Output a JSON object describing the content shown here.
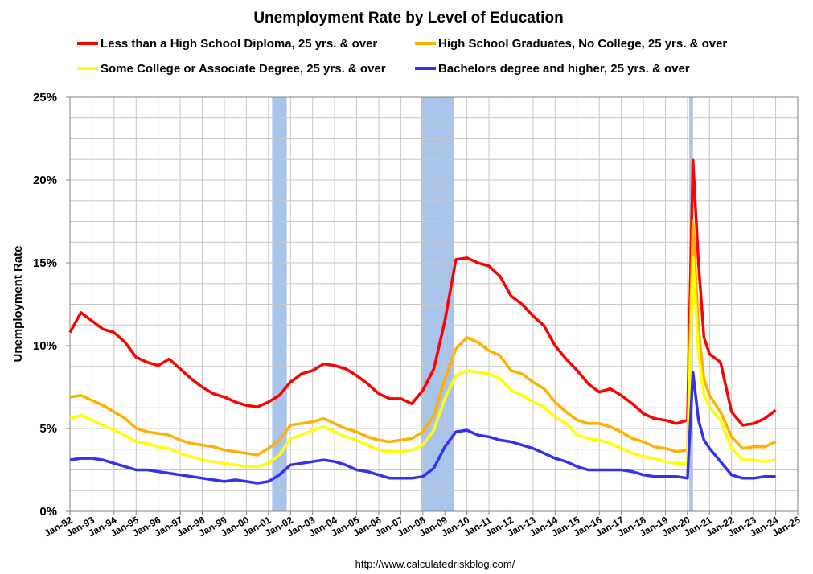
{
  "chart_data": {
    "type": "line",
    "title": "Unemployment Rate by Level of Education",
    "ylabel": "Unemployment Rate",
    "xlabel": "",
    "ylim": [
      0,
      25
    ],
    "xlim": [
      "Jan-92",
      "Jan-25"
    ],
    "y_ticks": [
      "0%",
      "5%",
      "10%",
      "15%",
      "20%",
      "25%"
    ],
    "x_ticks": [
      "Jan-92",
      "Jan-93",
      "Jan-94",
      "Jan-95",
      "Jan-96",
      "Jan-97",
      "Jan-98",
      "Jan-99",
      "Jan-00",
      "Jan-01",
      "Jan-02",
      "Jan-03",
      "Jan-04",
      "Jan-05",
      "Jan-06",
      "Jan-07",
      "Jan-08",
      "Jan-09",
      "Jan-10",
      "Jan-11",
      "Jan-12",
      "Jan-13",
      "Jan-14",
      "Jan-15",
      "Jan-16",
      "Jan-17",
      "Jan-18",
      "Jan-19",
      "Jan-20",
      "Jan-21",
      "Jan-22",
      "Jan-23",
      "Jan-24",
      "Jan-25"
    ],
    "grid": true,
    "legend_position": "top",
    "recessions": [
      {
        "start": "2001-03",
        "end": "2001-11"
      },
      {
        "start": "2007-12",
        "end": "2009-06"
      },
      {
        "start": "2020-02",
        "end": "2020-04"
      }
    ],
    "recession_color": "#a9c4eb",
    "source_text": "http://www.calculatedriskblog.com/",
    "series": [
      {
        "name": "Less than a High School Diploma, 25 yrs. & over",
        "color": "#ff0000",
        "points": [
          [
            "1992-01",
            10.8
          ],
          [
            "1992-07",
            12.0
          ],
          [
            "1993-01",
            11.5
          ],
          [
            "1993-07",
            11.0
          ],
          [
            "1994-01",
            10.8
          ],
          [
            "1994-07",
            10.2
          ],
          [
            "1995-01",
            9.3
          ],
          [
            "1995-07",
            9.0
          ],
          [
            "1996-01",
            8.8
          ],
          [
            "1996-07",
            9.2
          ],
          [
            "1997-01",
            8.6
          ],
          [
            "1997-07",
            8.0
          ],
          [
            "1998-01",
            7.5
          ],
          [
            "1998-07",
            7.1
          ],
          [
            "1999-01",
            6.9
          ],
          [
            "1999-07",
            6.6
          ],
          [
            "2000-01",
            6.4
          ],
          [
            "2000-07",
            6.3
          ],
          [
            "2001-01",
            6.6
          ],
          [
            "2001-07",
            7.0
          ],
          [
            "2002-01",
            7.8
          ],
          [
            "2002-07",
            8.3
          ],
          [
            "2003-01",
            8.5
          ],
          [
            "2003-07",
            8.9
          ],
          [
            "2004-01",
            8.8
          ],
          [
            "2004-07",
            8.6
          ],
          [
            "2005-01",
            8.2
          ],
          [
            "2005-07",
            7.7
          ],
          [
            "2006-01",
            7.1
          ],
          [
            "2006-07",
            6.8
          ],
          [
            "2007-01",
            6.8
          ],
          [
            "2007-07",
            6.5
          ],
          [
            "2008-01",
            7.3
          ],
          [
            "2008-07",
            8.6
          ],
          [
            "2009-01",
            11.5
          ],
          [
            "2009-07",
            15.2
          ],
          [
            "2010-01",
            15.3
          ],
          [
            "2010-07",
            15.0
          ],
          [
            "2011-01",
            14.8
          ],
          [
            "2011-07",
            14.2
          ],
          [
            "2012-01",
            13.0
          ],
          [
            "2012-07",
            12.5
          ],
          [
            "2013-01",
            11.8
          ],
          [
            "2013-07",
            11.2
          ],
          [
            "2014-01",
            10.0
          ],
          [
            "2014-07",
            9.2
          ],
          [
            "2015-01",
            8.5
          ],
          [
            "2015-07",
            7.7
          ],
          [
            "2016-01",
            7.2
          ],
          [
            "2016-07",
            7.4
          ],
          [
            "2017-01",
            7.0
          ],
          [
            "2017-07",
            6.5
          ],
          [
            "2018-01",
            5.9
          ],
          [
            "2018-07",
            5.6
          ],
          [
            "2019-01",
            5.5
          ],
          [
            "2019-07",
            5.3
          ],
          [
            "2020-01",
            5.5
          ],
          [
            "2020-04",
            21.2
          ],
          [
            "2020-07",
            15.0
          ],
          [
            "2020-10",
            10.5
          ],
          [
            "2021-01",
            9.5
          ],
          [
            "2021-07",
            9.0
          ],
          [
            "2022-01",
            6.0
          ],
          [
            "2022-07",
            5.2
          ],
          [
            "2023-01",
            5.3
          ],
          [
            "2023-07",
            5.6
          ],
          [
            "2024-01",
            6.1
          ]
        ]
      },
      {
        "name": "High School Graduates, No College, 25 yrs. & over",
        "color": "#ffb000",
        "points": [
          [
            "1992-01",
            6.9
          ],
          [
            "1992-07",
            7.0
          ],
          [
            "1993-01",
            6.7
          ],
          [
            "1993-07",
            6.4
          ],
          [
            "1994-01",
            6.0
          ],
          [
            "1994-07",
            5.6
          ],
          [
            "1995-01",
            5.0
          ],
          [
            "1995-07",
            4.8
          ],
          [
            "1996-01",
            4.7
          ],
          [
            "1996-07",
            4.6
          ],
          [
            "1997-01",
            4.3
          ],
          [
            "1997-07",
            4.1
          ],
          [
            "1998-01",
            4.0
          ],
          [
            "1998-07",
            3.9
          ],
          [
            "1999-01",
            3.7
          ],
          [
            "1999-07",
            3.6
          ],
          [
            "2000-01",
            3.5
          ],
          [
            "2000-07",
            3.4
          ],
          [
            "2001-01",
            3.8
          ],
          [
            "2001-07",
            4.3
          ],
          [
            "2002-01",
            5.2
          ],
          [
            "2002-07",
            5.3
          ],
          [
            "2003-01",
            5.4
          ],
          [
            "2003-07",
            5.6
          ],
          [
            "2004-01",
            5.3
          ],
          [
            "2004-07",
            5.0
          ],
          [
            "2005-01",
            4.8
          ],
          [
            "2005-07",
            4.5
          ],
          [
            "2006-01",
            4.3
          ],
          [
            "2006-07",
            4.2
          ],
          [
            "2007-01",
            4.3
          ],
          [
            "2007-07",
            4.4
          ],
          [
            "2008-01",
            4.8
          ],
          [
            "2008-07",
            5.8
          ],
          [
            "2009-01",
            8.0
          ],
          [
            "2009-07",
            9.8
          ],
          [
            "2010-01",
            10.5
          ],
          [
            "2010-07",
            10.2
          ],
          [
            "2011-01",
            9.7
          ],
          [
            "2011-07",
            9.4
          ],
          [
            "2012-01",
            8.5
          ],
          [
            "2012-07",
            8.3
          ],
          [
            "2013-01",
            7.8
          ],
          [
            "2013-07",
            7.4
          ],
          [
            "2014-01",
            6.6
          ],
          [
            "2014-07",
            6.0
          ],
          [
            "2015-01",
            5.5
          ],
          [
            "2015-07",
            5.3
          ],
          [
            "2016-01",
            5.3
          ],
          [
            "2016-07",
            5.1
          ],
          [
            "2017-01",
            4.8
          ],
          [
            "2017-07",
            4.4
          ],
          [
            "2018-01",
            4.2
          ],
          [
            "2018-07",
            3.9
          ],
          [
            "2019-01",
            3.8
          ],
          [
            "2019-07",
            3.6
          ],
          [
            "2020-01",
            3.7
          ],
          [
            "2020-04",
            17.5
          ],
          [
            "2020-07",
            11.0
          ],
          [
            "2020-10",
            8.0
          ],
          [
            "2021-01",
            7.0
          ],
          [
            "2021-07",
            6.0
          ],
          [
            "2022-01",
            4.5
          ],
          [
            "2022-07",
            3.8
          ],
          [
            "2023-01",
            3.9
          ],
          [
            "2023-07",
            3.9
          ],
          [
            "2024-01",
            4.2
          ]
        ]
      },
      {
        "name": "Some College or Associate Degree, 25 yrs. & over",
        "color": "#ffff00",
        "points": [
          [
            "1992-01",
            5.6
          ],
          [
            "1992-07",
            5.8
          ],
          [
            "1993-01",
            5.5
          ],
          [
            "1993-07",
            5.2
          ],
          [
            "1994-01",
            4.9
          ],
          [
            "1994-07",
            4.6
          ],
          [
            "1995-01",
            4.2
          ],
          [
            "1995-07",
            4.1
          ],
          [
            "1996-01",
            3.9
          ],
          [
            "1996-07",
            3.8
          ],
          [
            "1997-01",
            3.5
          ],
          [
            "1997-07",
            3.3
          ],
          [
            "1998-01",
            3.1
          ],
          [
            "1998-07",
            3.0
          ],
          [
            "1999-01",
            2.9
          ],
          [
            "1999-07",
            2.8
          ],
          [
            "2000-01",
            2.7
          ],
          [
            "2000-07",
            2.7
          ],
          [
            "2001-01",
            2.9
          ],
          [
            "2001-07",
            3.4
          ],
          [
            "2002-01",
            4.4
          ],
          [
            "2002-07",
            4.6
          ],
          [
            "2003-01",
            4.9
          ],
          [
            "2003-07",
            5.1
          ],
          [
            "2004-01",
            4.8
          ],
          [
            "2004-07",
            4.5
          ],
          [
            "2005-01",
            4.3
          ],
          [
            "2005-07",
            4.0
          ],
          [
            "2006-01",
            3.7
          ],
          [
            "2006-07",
            3.6
          ],
          [
            "2007-01",
            3.6
          ],
          [
            "2007-07",
            3.7
          ],
          [
            "2008-01",
            4.0
          ],
          [
            "2008-07",
            4.9
          ],
          [
            "2009-01",
            6.8
          ],
          [
            "2009-07",
            8.2
          ],
          [
            "2010-01",
            8.5
          ],
          [
            "2010-07",
            8.4
          ],
          [
            "2011-01",
            8.3
          ],
          [
            "2011-07",
            8.0
          ],
          [
            "2012-01",
            7.3
          ],
          [
            "2012-07",
            7.0
          ],
          [
            "2013-01",
            6.6
          ],
          [
            "2013-07",
            6.3
          ],
          [
            "2014-01",
            5.7
          ],
          [
            "2014-07",
            5.3
          ],
          [
            "2015-01",
            4.6
          ],
          [
            "2015-07",
            4.4
          ],
          [
            "2016-01",
            4.3
          ],
          [
            "2016-07",
            4.1
          ],
          [
            "2017-01",
            3.8
          ],
          [
            "2017-07",
            3.5
          ],
          [
            "2018-01",
            3.3
          ],
          [
            "2018-07",
            3.2
          ],
          [
            "2019-01",
            3.0
          ],
          [
            "2019-07",
            2.9
          ],
          [
            "2020-01",
            2.9
          ],
          [
            "2020-04",
            15.3
          ],
          [
            "2020-07",
            9.5
          ],
          [
            "2020-10",
            7.0
          ],
          [
            "2021-01",
            6.3
          ],
          [
            "2021-07",
            5.5
          ],
          [
            "2022-01",
            3.8
          ],
          [
            "2022-07",
            3.1
          ],
          [
            "2023-01",
            3.1
          ],
          [
            "2023-07",
            3.0
          ],
          [
            "2024-01",
            3.1
          ]
        ]
      },
      {
        "name": "Bachelors degree and higher, 25 yrs. & over",
        "color": "#3333ee",
        "points": [
          [
            "1992-01",
            3.1
          ],
          [
            "1992-07",
            3.2
          ],
          [
            "1993-01",
            3.2
          ],
          [
            "1993-07",
            3.1
          ],
          [
            "1994-01",
            2.9
          ],
          [
            "1994-07",
            2.7
          ],
          [
            "1995-01",
            2.5
          ],
          [
            "1995-07",
            2.5
          ],
          [
            "1996-01",
            2.4
          ],
          [
            "1996-07",
            2.3
          ],
          [
            "1997-01",
            2.2
          ],
          [
            "1997-07",
            2.1
          ],
          [
            "1998-01",
            2.0
          ],
          [
            "1998-07",
            1.9
          ],
          [
            "1999-01",
            1.8
          ],
          [
            "1999-07",
            1.9
          ],
          [
            "2000-01",
            1.8
          ],
          [
            "2000-07",
            1.7
          ],
          [
            "2001-01",
            1.8
          ],
          [
            "2001-07",
            2.2
          ],
          [
            "2002-01",
            2.8
          ],
          [
            "2002-07",
            2.9
          ],
          [
            "2003-01",
            3.0
          ],
          [
            "2003-07",
            3.1
          ],
          [
            "2004-01",
            3.0
          ],
          [
            "2004-07",
            2.8
          ],
          [
            "2005-01",
            2.5
          ],
          [
            "2005-07",
            2.4
          ],
          [
            "2006-01",
            2.2
          ],
          [
            "2006-07",
            2.0
          ],
          [
            "2007-01",
            2.0
          ],
          [
            "2007-07",
            2.0
          ],
          [
            "2008-01",
            2.1
          ],
          [
            "2008-07",
            2.6
          ],
          [
            "2009-01",
            3.9
          ],
          [
            "2009-07",
            4.8
          ],
          [
            "2010-01",
            4.9
          ],
          [
            "2010-07",
            4.6
          ],
          [
            "2011-01",
            4.5
          ],
          [
            "2011-07",
            4.3
          ],
          [
            "2012-01",
            4.2
          ],
          [
            "2012-07",
            4.0
          ],
          [
            "2013-01",
            3.8
          ],
          [
            "2013-07",
            3.5
          ],
          [
            "2014-01",
            3.2
          ],
          [
            "2014-07",
            3.0
          ],
          [
            "2015-01",
            2.7
          ],
          [
            "2015-07",
            2.5
          ],
          [
            "2016-01",
            2.5
          ],
          [
            "2016-07",
            2.5
          ],
          [
            "2017-01",
            2.5
          ],
          [
            "2017-07",
            2.4
          ],
          [
            "2018-01",
            2.2
          ],
          [
            "2018-07",
            2.1
          ],
          [
            "2019-01",
            2.1
          ],
          [
            "2019-07",
            2.1
          ],
          [
            "2020-01",
            2.0
          ],
          [
            "2020-04",
            8.4
          ],
          [
            "2020-07",
            5.5
          ],
          [
            "2020-10",
            4.3
          ],
          [
            "2021-01",
            3.8
          ],
          [
            "2021-07",
            3.0
          ],
          [
            "2022-01",
            2.2
          ],
          [
            "2022-07",
            2.0
          ],
          [
            "2023-01",
            2.0
          ],
          [
            "2023-07",
            2.1
          ],
          [
            "2024-01",
            2.1
          ]
        ]
      }
    ]
  }
}
